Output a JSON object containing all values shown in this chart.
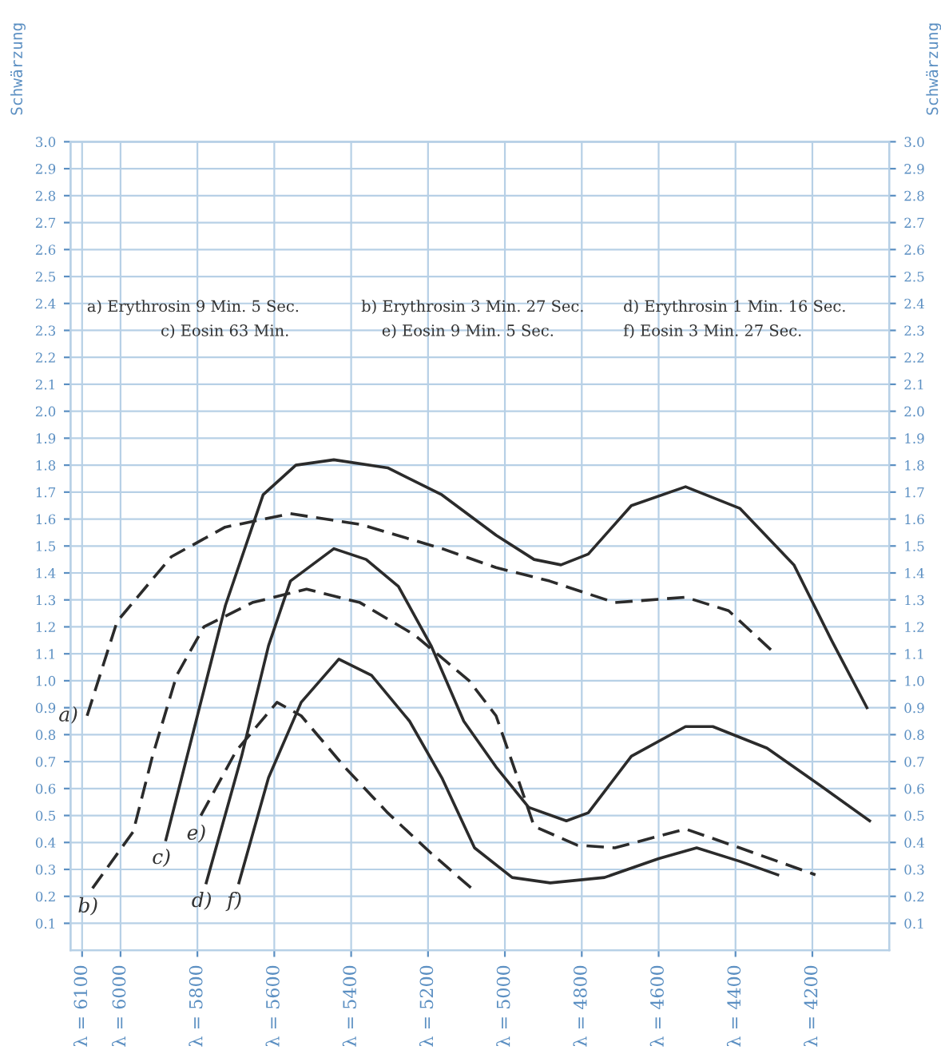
{
  "chart_data": {
    "type": "line",
    "ylabel": "Schwärzung",
    "y2label": "Schwärzung",
    "annotations": [
      "a) Erythrosin 9 Min. 5 Sec.",
      "b) Erythrosin 3 Min. 27 Sec.",
      "d) Erythrosin 1 Min. 16 Sec.",
      "c) Eosin 63 Min.",
      "e) Eosin 9 Min. 5 Sec.",
      "f) Eosin 3 Min. 27 Sec."
    ],
    "xlim": [
      6130,
      4000
    ],
    "xticks": [
      {
        "value": 6100,
        "label": "λ = 6100"
      },
      {
        "value": 6000,
        "label": "λ = 6000"
      },
      {
        "value": 5800,
        "label": "λ = 5800"
      },
      {
        "value": 5600,
        "label": "λ = 5600"
      },
      {
        "value": 5400,
        "label": "λ = 5400"
      },
      {
        "value": 5200,
        "label": "λ = 5200"
      },
      {
        "value": 5000,
        "label": "λ = 5000"
      },
      {
        "value": 4800,
        "label": "λ = 4800"
      },
      {
        "value": 4600,
        "label": "λ = 4600"
      },
      {
        "value": 4400,
        "label": "λ = 4400"
      },
      {
        "value": 4200,
        "label": "λ = 4200"
      }
    ],
    "ylim": [
      0.0,
      3.0
    ],
    "yticks": [
      0.1,
      0.2,
      0.3,
      0.4,
      0.5,
      0.6,
      0.7,
      0.8,
      0.9,
      {
        "value": 1.0,
        "label": "1.0"
      },
      1.1,
      1.2,
      1.3,
      1.4,
      1.5,
      1.6,
      1.7,
      1.8,
      1.9,
      {
        "value": 2.0,
        "label": "2.0"
      },
      2.1,
      2.2,
      2.3,
      2.4,
      2.5,
      2.6,
      2.7,
      2.8,
      2.9,
      {
        "value": 3.0,
        "label": "3.0"
      }
    ],
    "y2lim": [
      0.0,
      3.0
    ],
    "y2ticks": [
      0.1,
      0.2,
      0.3,
      0.4,
      0.5,
      0.6,
      0.7,
      0.8,
      0.9,
      {
        "value": 1.0,
        "label": "1.0"
      },
      1.1,
      1.2,
      1.3,
      1.4,
      1.5,
      1.6,
      1.7,
      1.8,
      1.9,
      {
        "value": 2.0,
        "label": "2.0"
      },
      2.1,
      2.2,
      2.3,
      2.4,
      2.5,
      2.6,
      2.7,
      2.8,
      2.9,
      {
        "value": 3.0,
        "label": "3.0"
      }
    ],
    "grid": true,
    "legend": false,
    "marker": "none",
    "series": [
      {
        "name": "a)",
        "color": "#2b2b2b",
        "line_style": "dashed",
        "x": [
          6087,
          6009,
          5868,
          5728,
          5558,
          5375,
          5163,
          5023,
          4884,
          4714,
          4530,
          4418,
          4304
        ],
        "values": [
          0.87,
          1.22,
          1.46,
          1.57,
          1.62,
          1.58,
          1.49,
          1.42,
          1.37,
          1.29,
          1.31,
          1.26,
          1.11
        ]
      },
      {
        "name": "b)",
        "color": "#2b2b2b",
        "line_style": "dashed",
        "x": [
          6073,
          5967,
          5917,
          5854,
          5783,
          5657,
          5516,
          5377,
          5235,
          5093,
          5023,
          4967,
          4924,
          4812,
          4714,
          4530,
          4389,
          4192
        ],
        "values": [
          0.23,
          0.44,
          0.72,
          1.02,
          1.2,
          1.29,
          1.34,
          1.29,
          1.17,
          1.0,
          0.87,
          0.64,
          0.46,
          0.39,
          0.38,
          0.45,
          0.38,
          0.28
        ]
      },
      {
        "name": "c)",
        "color": "#2b2b2b",
        "line_style": "solid",
        "x": [
          5882,
          5727,
          5629,
          5544,
          5445,
          5305,
          5164,
          5023,
          4924,
          4854,
          4783,
          4671,
          4530,
          4389,
          4248,
          4150,
          4058
        ],
        "values": [
          0.41,
          1.28,
          1.69,
          1.8,
          1.82,
          1.79,
          1.69,
          1.54,
          1.45,
          1.43,
          1.47,
          1.65,
          1.72,
          1.64,
          1.43,
          1.15,
          0.9
        ]
      },
      {
        "name": "d)",
        "color": "#2b2b2b",
        "line_style": "solid",
        "x": [
          5777,
          5685,
          5615,
          5558,
          5445,
          5361,
          5277,
          5192,
          5107,
          5023,
          4938,
          4840,
          4783,
          4671,
          4530,
          4459,
          4318,
          4178,
          4051
        ],
        "values": [
          0.25,
          0.72,
          1.13,
          1.37,
          1.49,
          1.45,
          1.35,
          1.13,
          0.85,
          0.68,
          0.53,
          0.48,
          0.51,
          0.72,
          0.83,
          0.83,
          0.75,
          0.61,
          0.48
        ]
      },
      {
        "name": "e)",
        "color": "#2b2b2b",
        "line_style": "dashed",
        "x": [
          5791,
          5699,
          5593,
          5530,
          5417,
          5305,
          5192,
          5087
        ],
        "values": [
          0.5,
          0.74,
          0.92,
          0.87,
          0.68,
          0.51,
          0.36,
          0.23
        ]
      },
      {
        "name": "f)",
        "color": "#2b2b2b",
        "line_style": "solid",
        "x": [
          5692,
          5615,
          5530,
          5432,
          5347,
          5248,
          5164,
          5079,
          4981,
          4882,
          4741,
          4600,
          4501,
          4389,
          4290
        ],
        "values": [
          0.25,
          0.64,
          0.92,
          1.08,
          1.02,
          0.85,
          0.64,
          0.38,
          0.27,
          0.25,
          0.27,
          0.34,
          0.38,
          0.33,
          0.28
        ]
      }
    ]
  }
}
